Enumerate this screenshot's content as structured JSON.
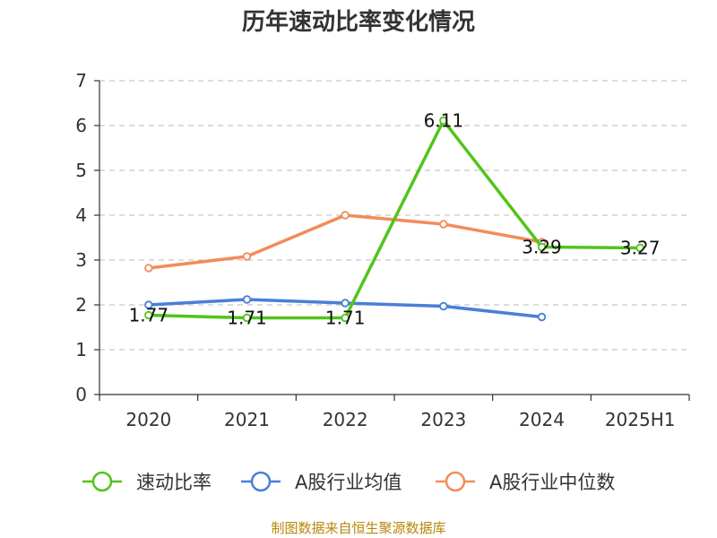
{
  "chart_data": {
    "type": "line",
    "title": "历年速动比率变化情况",
    "categories": [
      "2020",
      "2021",
      "2022",
      "2023",
      "2024",
      "2025H1"
    ],
    "ylim": [
      0,
      7
    ],
    "yticks": [
      "0",
      "1",
      "2",
      "3",
      "4",
      "5",
      "6",
      "7"
    ],
    "grid": true,
    "legend_position": "bottom",
    "series": [
      {
        "name": "速动比率",
        "color": "#52c41a",
        "values": [
          1.77,
          1.71,
          1.71,
          6.11,
          3.29,
          3.27
        ],
        "labels": [
          "1.77",
          "1.71",
          "1.71",
          "6.11",
          "3.29",
          "3.27"
        ]
      },
      {
        "name": "A股行业均值",
        "color": "#4a7fd6",
        "values": [
          2.0,
          2.12,
          2.04,
          1.97,
          1.73,
          null
        ]
      },
      {
        "name": "A股行业中位数",
        "color": "#f28c5a",
        "values": [
          2.82,
          3.08,
          4.0,
          3.8,
          3.4,
          null
        ]
      }
    ]
  },
  "source_text": "制图数据来自恒生聚源数据库"
}
